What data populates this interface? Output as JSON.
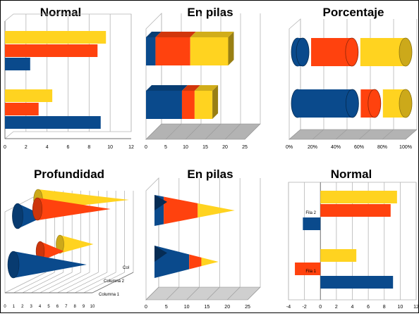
{
  "colors": {
    "blue": "#0a4a8c",
    "orange": "#ff420e",
    "yellow": "#ffd320",
    "floor": "#b3b3b3",
    "wall": "#d9d9d9"
  },
  "chart_data": [
    {
      "type": "bar",
      "title": "Normal",
      "orientation": "horizontal",
      "xlim": [
        0,
        12
      ],
      "ticks": [
        "0",
        "2",
        "4",
        "6",
        "8",
        "10",
        "12"
      ],
      "groups": [
        {
          "values": {
            "blue": 9.1,
            "orange": 3.2,
            "yellow": 4.5
          }
        },
        {
          "values": {
            "blue": 2.4,
            "orange": 8.8,
            "yellow": 9.6
          }
        }
      ]
    },
    {
      "type": "bar",
      "title": "En pilas",
      "stacked": true,
      "three_d": true,
      "xlim": [
        0,
        25
      ],
      "ticks": [
        "0",
        "5",
        "10",
        "15",
        "20",
        "25"
      ],
      "groups": [
        {
          "values": {
            "blue": 9.1,
            "orange": 3.2,
            "yellow": 4.5
          }
        },
        {
          "values": {
            "blue": 2.4,
            "orange": 8.8,
            "yellow": 9.6
          }
        }
      ]
    },
    {
      "type": "bar",
      "title": "Porcentaje",
      "stacked": "percent",
      "shape": "cylinder",
      "xlim": [
        0,
        100
      ],
      "ticks": [
        "0%",
        "20%",
        "40%",
        "60%",
        "80%",
        "100%"
      ],
      "groups": [
        {
          "values": {
            "blue": 9.1,
            "orange": 3.2,
            "yellow": 4.5
          }
        },
        {
          "values": {
            "blue": 2.4,
            "orange": 8.8,
            "yellow": 9.6
          }
        }
      ]
    },
    {
      "type": "bar",
      "title": "Profundidad",
      "shape": "cone",
      "depth": true,
      "xlim": [
        0,
        10
      ],
      "ticks": [
        "0",
        "1",
        "2",
        "3",
        "4",
        "5",
        "6",
        "7",
        "8",
        "9",
        "10"
      ],
      "depth_labels": [
        "Columna 1",
        "Columna 2",
        "Col"
      ],
      "groups": [
        {
          "values": {
            "blue": 9.1,
            "orange": 3.2,
            "yellow": 4.5
          }
        },
        {
          "values": {
            "blue": 2.4,
            "orange": 8.8,
            "yellow": 9.6
          }
        }
      ]
    },
    {
      "type": "bar",
      "title": "En pilas",
      "stacked": true,
      "shape": "cone",
      "xlim": [
        0,
        25
      ],
      "ticks": [
        "0",
        "5",
        "10",
        "15",
        "20",
        "25"
      ],
      "groups": [
        {
          "values": {
            "blue": 9.1,
            "orange": 3.2,
            "yellow": 4.5
          }
        },
        {
          "values": {
            "blue": 2.4,
            "orange": 8.8,
            "yellow": 9.6
          }
        }
      ]
    },
    {
      "type": "bar",
      "title": "Normal",
      "orientation": "horizontal",
      "xlim": [
        -4,
        12
      ],
      "ticks": [
        "-4",
        "-2",
        "0",
        "2",
        "4",
        "6",
        "8",
        "10",
        "12"
      ],
      "category_labels": [
        "Fila 1",
        "Fila 2"
      ],
      "groups": [
        {
          "values": {
            "blue": 9.1,
            "orange": -3.2,
            "yellow": 4.5
          }
        },
        {
          "values": {
            "blue": -2.2,
            "orange": 8.8,
            "yellow": 9.6
          }
        }
      ]
    }
  ]
}
